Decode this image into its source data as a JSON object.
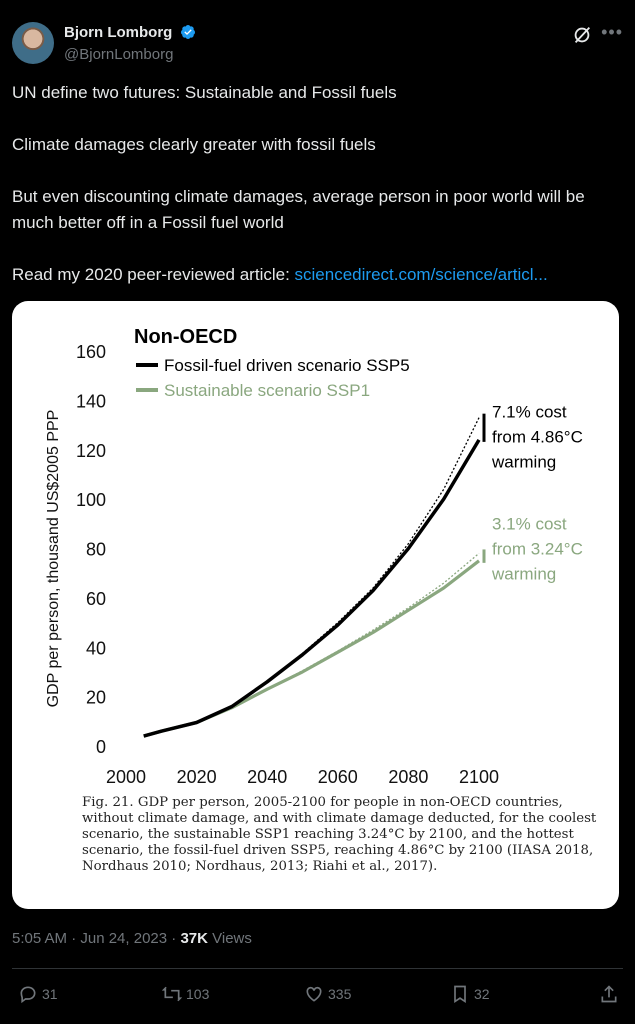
{
  "author": {
    "name": "Bjorn Lomborg",
    "handle": "@BjornLomborg"
  },
  "tweet": {
    "line1": "UN define two futures: Sustainable and Fossil fuels",
    "line2": "Climate damages clearly greater with fossil fuels",
    "line3": "But even discounting climate damages, average person in poor world will be much better off in a Fossil fuel world",
    "line4_prefix": "Read my 2020 peer-reviewed article: ",
    "line4_link": "sciencedirect.com/science/articl..."
  },
  "meta": {
    "timestamp": "5:05 AM · Jun 24, 2023 · ",
    "views_count": "37K",
    "views_label": " Views"
  },
  "actions": {
    "replies": "31",
    "reposts": "103",
    "likes": "335",
    "bookmarks": "32"
  },
  "colors": {
    "link": "#1d9bf0",
    "fossil_series": "#000000",
    "sustainable_series": "#8aa77f"
  },
  "chart_data": {
    "type": "line",
    "title": "Non-OECD",
    "xlabel": "",
    "ylabel": "GDP per person, thousand US$2005 PPP",
    "xlim": [
      2000,
      2100
    ],
    "ylim": [
      0,
      160
    ],
    "xticks": [
      2000,
      2020,
      2040,
      2060,
      2080,
      2100
    ],
    "yticks": [
      0,
      20,
      40,
      60,
      80,
      100,
      120,
      140,
      160
    ],
    "legend_position": "top-left",
    "series": [
      {
        "name": "Fossil-fuel driven scenario SSP5",
        "x": [
          2005,
          2010,
          2020,
          2030,
          2040,
          2050,
          2060,
          2070,
          2080,
          2090,
          2100
        ],
        "y": [
          4,
          6,
          9.5,
          16,
          26,
          37,
          49,
          63,
          80,
          100,
          124
        ]
      },
      {
        "name": "Sustainable scenario SSP1",
        "x": [
          2005,
          2010,
          2020,
          2030,
          2040,
          2050,
          2060,
          2070,
          2080,
          2090,
          2100
        ],
        "y": [
          4,
          6,
          9.5,
          15.5,
          23,
          30,
          38,
          46,
          55,
          64,
          75
        ]
      }
    ],
    "no_damage_series": [
      {
        "x": [
          2030,
          2040,
          2050,
          2060,
          2070,
          2080,
          2090,
          2100
        ],
        "y": [
          16,
          26,
          37.5,
          50,
          64,
          82,
          104,
          133
        ]
      },
      {
        "x": [
          2030,
          2040,
          2050,
          2060,
          2070,
          2080,
          2090,
          2100
        ],
        "y": [
          15.5,
          23,
          30.5,
          38.5,
          47,
          56,
          66,
          78
        ]
      }
    ],
    "annotations": [
      {
        "lines": [
          "7.1% cost",
          "from 4.86°C",
          "warming"
        ]
      },
      {
        "lines": [
          "3.1% cost",
          "from 3.24°C",
          "warming"
        ]
      }
    ],
    "caption": "Fig. 21. GDP per person, 2005-2100 for people in non-OECD countries, without climate damage, and with climate damage deducted, for the coolest scenario, the sustainable SSP1 reaching 3.24°C by 2100, and the hottest scenario, the fossil-fuel driven SSP5, reaching 4.86°C by 2100 (IIASA 2018, Nordhaus 2010; Nordhaus, 2013; Riahi et al., 2017)."
  }
}
